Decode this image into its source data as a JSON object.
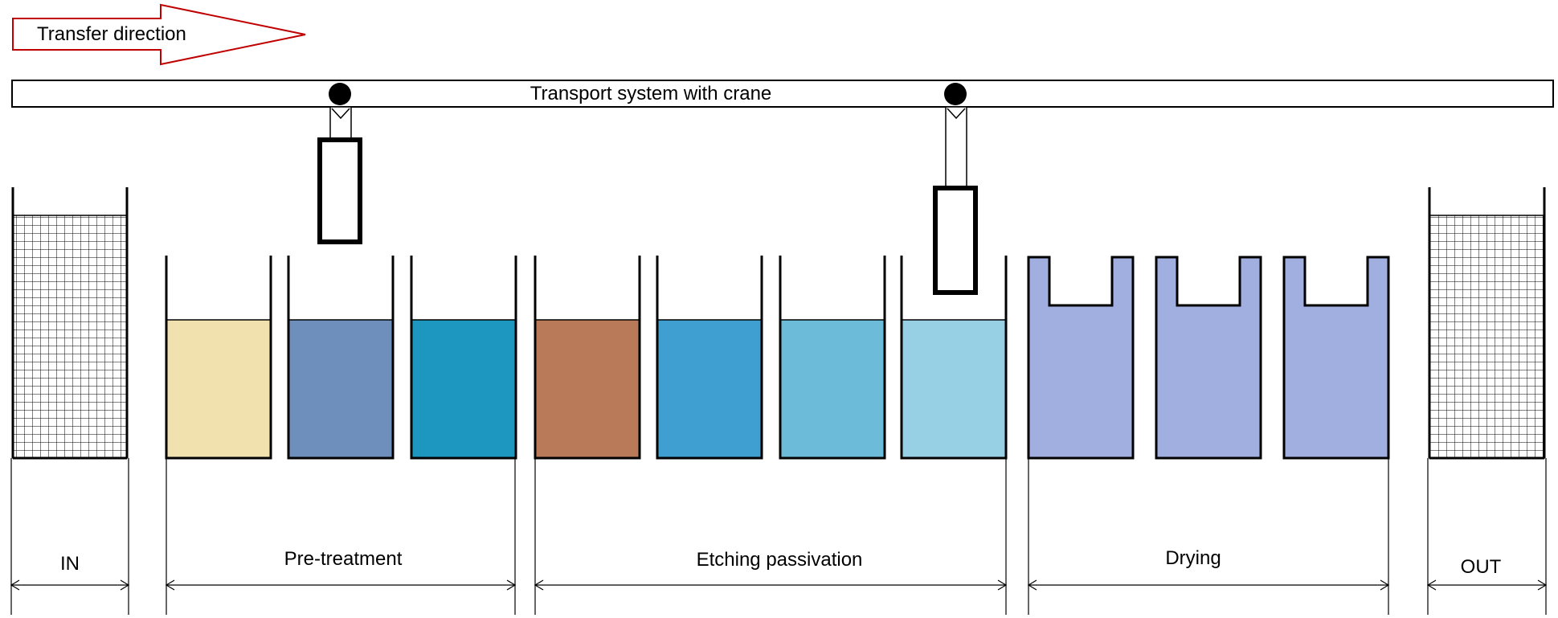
{
  "transfer_arrow": {
    "label": "Transfer direction"
  },
  "transport": {
    "label": "Transport system with crane"
  },
  "sections": [
    {
      "id": "in",
      "label": "IN"
    },
    {
      "id": "pre",
      "label": "Pre-treatment"
    },
    {
      "id": "etch",
      "label": "Etching passivation"
    },
    {
      "id": "dry",
      "label": "Drying"
    },
    {
      "id": "out",
      "label": "OUT"
    }
  ],
  "tank_colors": [
    "#F0E1AF",
    "#6E8FBB",
    "#1E97C0",
    "#B87A58",
    "#3F9FD1",
    "#6BBBD9",
    "#97CFE5"
  ],
  "dryer_color": "#A0AEE0",
  "colors": {
    "line": "#000000",
    "arrow_outline": "#C00000"
  }
}
